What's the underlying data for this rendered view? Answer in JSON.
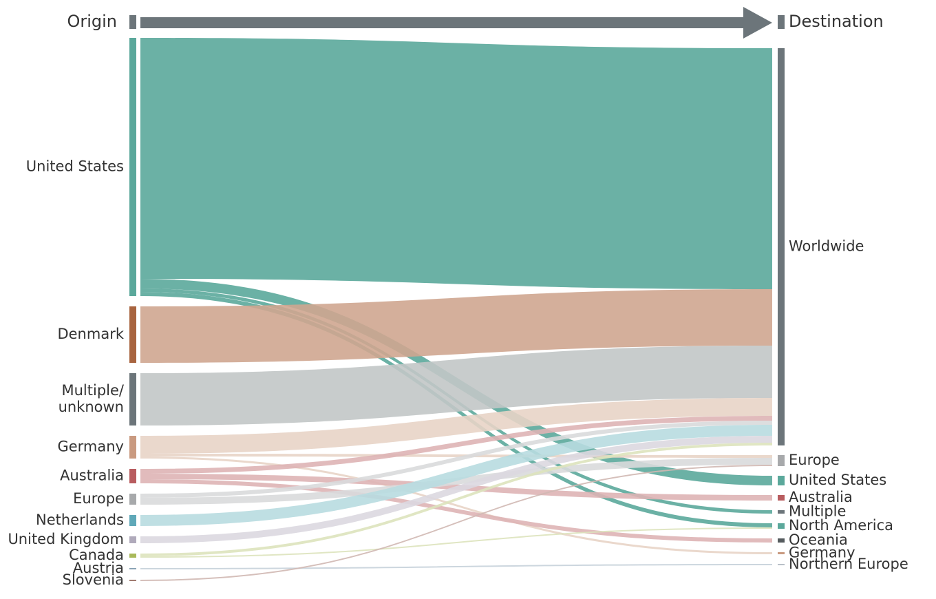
{
  "chart_data": {
    "type": "sankey",
    "origin_label": "Origin",
    "destination_label": "Destination",
    "sources": [
      {
        "name": "United States",
        "color": "#5ba89b",
        "flow_color": "#5ba89b"
      },
      {
        "name": "Denmark",
        "color": "#a8643f",
        "flow_color": "#cfa690"
      },
      {
        "name": "Multiple/\nunknown",
        "color": "#6c757a",
        "flow_color": "#c2c7c6"
      },
      {
        "name": "Germany",
        "color": "#c99a80",
        "flow_color": "#e8d4c7"
      },
      {
        "name": "Australia",
        "color": "#b85c5f",
        "flow_color": "#deb4b5"
      },
      {
        "name": "Europe",
        "color": "#a7a9ab",
        "flow_color": "#d9dadb"
      },
      {
        "name": "Netherlands",
        "color": "#5fa8b8",
        "flow_color": "#b8dbe0"
      },
      {
        "name": "United Kingdom",
        "color": "#b0aabb",
        "flow_color": "#dcd8e0"
      },
      {
        "name": "Canada",
        "color": "#a9b95a",
        "flow_color": "#dde3bd"
      },
      {
        "name": "Austria",
        "color": "#8aa3b5",
        "flow_color": "#c6d2da"
      },
      {
        "name": "Slovenia",
        "color": "#a07a70",
        "flow_color": "#d0b8b2"
      }
    ],
    "targets": [
      {
        "name": "Worldwide",
        "color": "#6c757a"
      },
      {
        "name": "Europe",
        "color": "#a7a9ab"
      },
      {
        "name": "United States",
        "color": "#5ba89b"
      },
      {
        "name": "Australia",
        "color": "#b85c5f"
      },
      {
        "name": "Multiple",
        "color": "#6c757a"
      },
      {
        "name": "North America",
        "color": "#5ba89b"
      },
      {
        "name": "Oceania",
        "color": "#555b5e"
      },
      {
        "name": "Germany",
        "color": "#c99a80"
      },
      {
        "name": "Northern Europe",
        "color": "#b8c0c8"
      }
    ],
    "links": [
      {
        "source": 0,
        "target": 0,
        "value": 350
      },
      {
        "source": 0,
        "target": 2,
        "value": 14
      },
      {
        "source": 0,
        "target": 4,
        "value": 5
      },
      {
        "source": 0,
        "target": 5,
        "value": 6
      },
      {
        "source": 1,
        "target": 0,
        "value": 82
      },
      {
        "source": 2,
        "target": 0,
        "value": 76
      },
      {
        "source": 3,
        "target": 0,
        "value": 26
      },
      {
        "source": 3,
        "target": 1,
        "value": 4
      },
      {
        "source": 3,
        "target": 7,
        "value": 3
      },
      {
        "source": 4,
        "target": 0,
        "value": 7
      },
      {
        "source": 4,
        "target": 3,
        "value": 8
      },
      {
        "source": 4,
        "target": 6,
        "value": 6
      },
      {
        "source": 5,
        "target": 0,
        "value": 6
      },
      {
        "source": 5,
        "target": 1,
        "value": 10
      },
      {
        "source": 6,
        "target": 0,
        "value": 16
      },
      {
        "source": 7,
        "target": 0,
        "value": 10
      },
      {
        "source": 8,
        "target": 0,
        "value": 4
      },
      {
        "source": 8,
        "target": 5,
        "value": 2
      },
      {
        "source": 9,
        "target": 8,
        "value": 2
      },
      {
        "source": 10,
        "target": 1,
        "value": 2
      }
    ]
  }
}
